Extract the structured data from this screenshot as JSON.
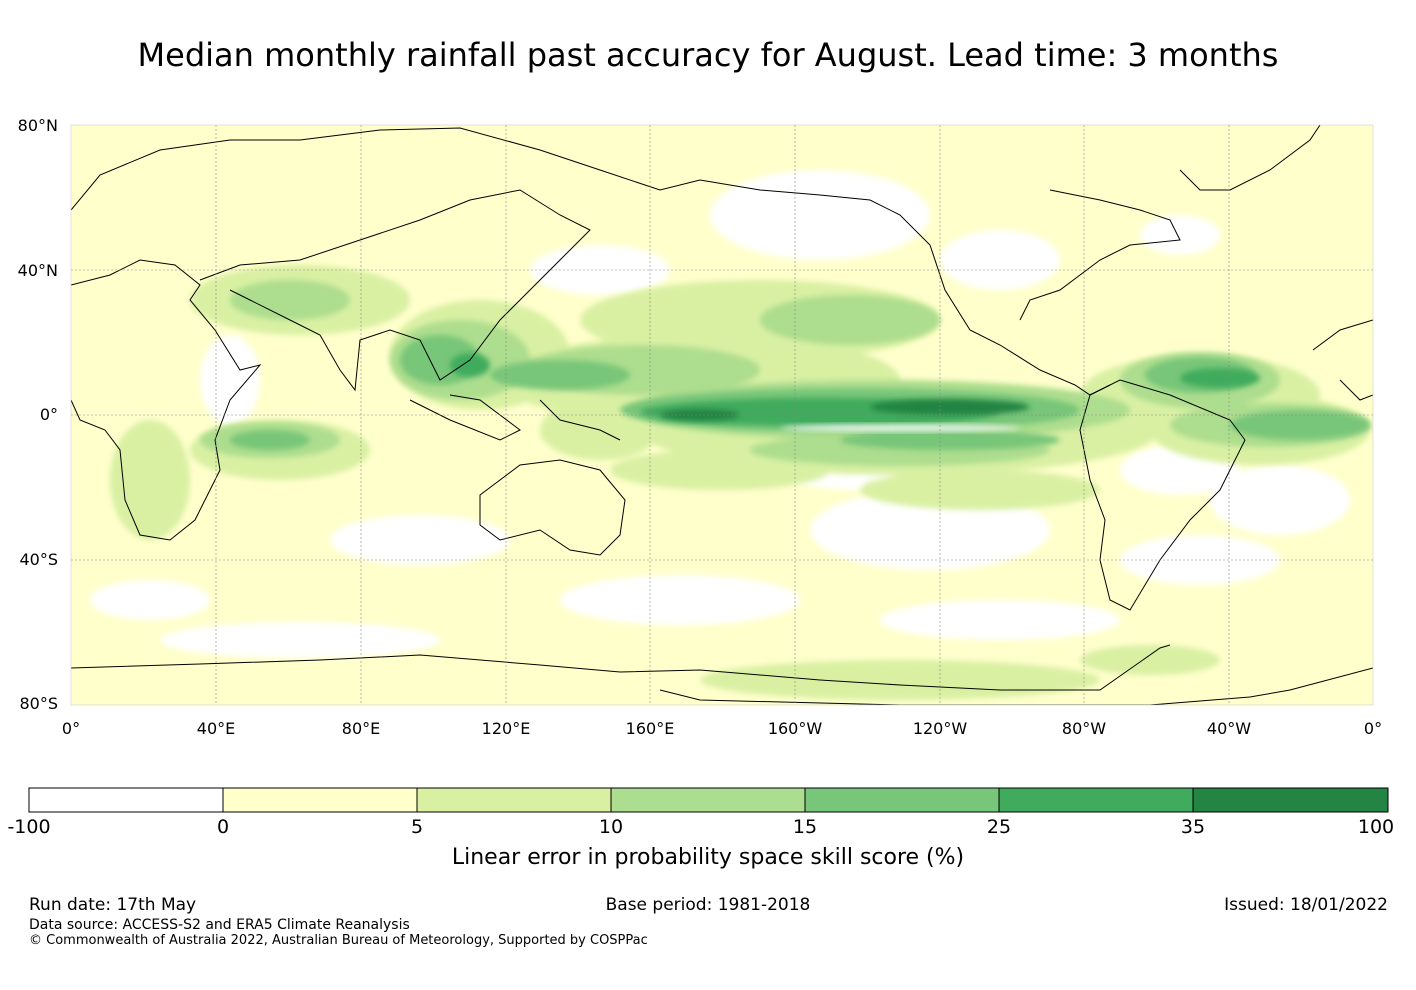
{
  "title": "Median monthly rainfall past accuracy for August. Lead time: 3 months",
  "map": {
    "lat_labels": [
      "80°N",
      "40°N",
      "0°",
      "40°S",
      "80°S"
    ],
    "lon_labels": [
      "0°",
      "40°E",
      "80°E",
      "120°E",
      "160°E",
      "160°W",
      "120°W",
      "80°W",
      "40°W",
      "0°"
    ]
  },
  "colorbar": {
    "tick_labels": [
      "-100",
      "0",
      "5",
      "10",
      "15",
      "25",
      "35",
      "100"
    ],
    "colors": [
      "#ffffff",
      "#ffffcc",
      "#d9f0a3",
      "#addd8e",
      "#78c679",
      "#41ab5d",
      "#238443"
    ],
    "title": "Linear error in probability space skill score (%)"
  },
  "footer": {
    "run_date": "Run date: 17th May",
    "base_period": "Base period: 1981-2018",
    "issued": "Issued: 18/01/2022",
    "data_source": "Data source: ACCESS-S2 and ERA5 Climate Reanalysis",
    "copyright": "© Commonwealth of Australia 2022, Australian Bureau of Meteorology, Supported by COSPPac"
  }
}
